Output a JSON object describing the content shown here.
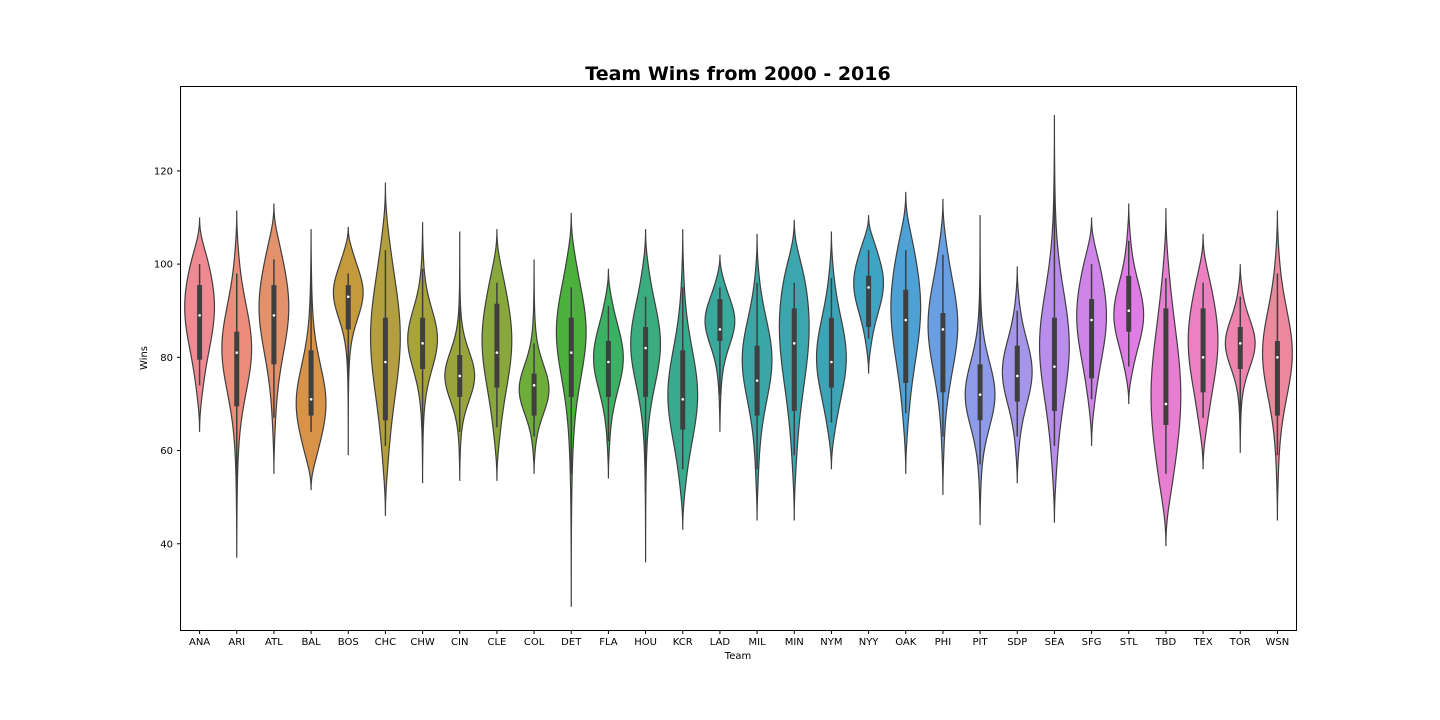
{
  "chart_data": {
    "type": "violin",
    "title": "Team Wins from 2000 - 2016",
    "xlabel": "Team",
    "ylabel": "Wins",
    "ylim": [
      21.5,
      138
    ],
    "yticks": [
      40,
      60,
      80,
      100,
      120
    ],
    "grid": false,
    "legend": "none",
    "categories": [
      "ANA",
      "ARI",
      "ATL",
      "BAL",
      "BOS",
      "CHC",
      "CHW",
      "CIN",
      "CLE",
      "COL",
      "DET",
      "FLA",
      "HOU",
      "KCR",
      "LAD",
      "MIL",
      "MIN",
      "NYM",
      "NYY",
      "OAK",
      "PHI",
      "PIT",
      "SDP",
      "SEA",
      "SFG",
      "STL",
      "TBD",
      "TEX",
      "TOR",
      "WSN"
    ],
    "colors": [
      "#ef8a93",
      "#ed8c7b",
      "#e3916a",
      "#d99348",
      "#c49a3d",
      "#b49f3e",
      "#a7a43c",
      "#99a53b",
      "#88a83c",
      "#6fad3b",
      "#4bb03c",
      "#3ab163",
      "#3bac7f",
      "#3aaa8f",
      "#39a99c",
      "#3aa7a6",
      "#3ba6ae",
      "#3ca4b6",
      "#3fa3c4",
      "#4ea1d4",
      "#6a9ee2",
      "#8e9be9",
      "#a596e9",
      "#b88deb",
      "#cf84ea",
      "#e07ce5",
      "#e87ed2",
      "#ec80c0",
      "#ee84ad",
      "#ee889c"
    ],
    "series": [
      {
        "team": "ANA",
        "min": 64,
        "max": 110,
        "q1": 79.5,
        "median": 89,
        "q3": 95.5,
        "whisker_low": 74,
        "whisker_high": 100,
        "mode": 91
      },
      {
        "team": "ARI",
        "min": 37,
        "max": 111.5,
        "q1": 69.5,
        "median": 81,
        "q3": 85.5,
        "whisker_low": 51,
        "whisker_high": 98,
        "mode": 82
      },
      {
        "team": "ATL",
        "min": 55,
        "max": 113,
        "q1": 78.5,
        "median": 89,
        "q3": 95.5,
        "whisker_low": 67,
        "whisker_high": 101,
        "mode": 91
      },
      {
        "team": "BAL",
        "min": 51.5,
        "max": 107.5,
        "q1": 67.5,
        "median": 71,
        "q3": 81.5,
        "whisker_low": 64,
        "whisker_high": 96,
        "mode": 70
      },
      {
        "team": "BOS",
        "min": 59,
        "max": 108,
        "q1": 86,
        "median": 93,
        "q3": 95.5,
        "whisker_low": 71,
        "whisker_high": 98,
        "mode": 94
      },
      {
        "team": "CHC",
        "min": 46,
        "max": 117.5,
        "q1": 66.5,
        "median": 79,
        "q3": 88.5,
        "whisker_low": 61,
        "whisker_high": 103,
        "mode": 85
      },
      {
        "team": "CHW",
        "min": 53,
        "max": 109,
        "q1": 77.5,
        "median": 83,
        "q3": 88.5,
        "whisker_low": 63,
        "whisker_high": 99,
        "mode": 84
      },
      {
        "team": "CIN",
        "min": 53.5,
        "max": 107,
        "q1": 71.5,
        "median": 76,
        "q3": 80.5,
        "whisker_low": 64,
        "whisker_high": 91,
        "mode": 76
      },
      {
        "team": "CLE",
        "min": 53.5,
        "max": 107.5,
        "q1": 73.5,
        "median": 81,
        "q3": 91.5,
        "whisker_low": 65,
        "whisker_high": 96,
        "mode": 84
      },
      {
        "team": "COL",
        "min": 55,
        "max": 101,
        "q1": 67.5,
        "median": 74,
        "q3": 76.5,
        "whisker_low": 63,
        "whisker_high": 83,
        "mode": 73
      },
      {
        "team": "DET",
        "min": 26.5,
        "max": 111,
        "q1": 71.5,
        "median": 81,
        "q3": 88.5,
        "whisker_low": 55,
        "whisker_high": 95,
        "mode": 86
      },
      {
        "team": "FLA",
        "min": 54,
        "max": 99,
        "q1": 71.5,
        "median": 79,
        "q3": 83.5,
        "whisker_low": 62,
        "whisker_high": 91,
        "mode": 80
      },
      {
        "team": "HOU",
        "min": 36,
        "max": 107.5,
        "q1": 71.5,
        "median": 82,
        "q3": 86.5,
        "whisker_low": 51,
        "whisker_high": 93,
        "mode": 83
      },
      {
        "team": "KCR",
        "min": 43,
        "max": 107.5,
        "q1": 64.5,
        "median": 71,
        "q3": 81.5,
        "whisker_low": 56,
        "whisker_high": 95,
        "mode": 72
      },
      {
        "team": "LAD",
        "min": 64,
        "max": 102,
        "q1": 83.5,
        "median": 86,
        "q3": 92.5,
        "whisker_low": 72,
        "whisker_high": 95,
        "mode": 88
      },
      {
        "team": "MIL",
        "min": 45,
        "max": 106.5,
        "q1": 67.5,
        "median": 75,
        "q3": 82.5,
        "whisker_low": 56,
        "whisker_high": 96,
        "mode": 80
      },
      {
        "team": "MIN",
        "min": 45,
        "max": 109.5,
        "q1": 68.5,
        "median": 83,
        "q3": 90.5,
        "whisker_low": 59,
        "whisker_high": 96,
        "mode": 87
      },
      {
        "team": "NYM",
        "min": 56,
        "max": 107,
        "q1": 73.5,
        "median": 79,
        "q3": 88.5,
        "whisker_low": 66,
        "whisker_high": 97,
        "mode": 80
      },
      {
        "team": "NYY",
        "min": 76.5,
        "max": 110.5,
        "q1": 86.5,
        "median": 95,
        "q3": 97.5,
        "whisker_low": 84,
        "whisker_high": 103,
        "mode": 96
      },
      {
        "team": "OAK",
        "min": 55,
        "max": 115.5,
        "q1": 74.5,
        "median": 88,
        "q3": 94.5,
        "whisker_low": 68,
        "whisker_high": 103,
        "mode": 91
      },
      {
        "team": "PHI",
        "min": 50.5,
        "max": 114,
        "q1": 72.5,
        "median": 86,
        "q3": 89.5,
        "whisker_low": 63,
        "whisker_high": 102,
        "mode": 87
      },
      {
        "team": "PIT",
        "min": 44,
        "max": 110.5,
        "q1": 66.5,
        "median": 72,
        "q3": 78.5,
        "whisker_low": 57,
        "whisker_high": 94,
        "mode": 72
      },
      {
        "team": "SDP",
        "min": 53,
        "max": 99.5,
        "q1": 70.5,
        "median": 76,
        "q3": 82.5,
        "whisker_low": 63,
        "whisker_high": 90,
        "mode": 77
      },
      {
        "team": "SEA",
        "min": 44.5,
        "max": 132,
        "q1": 68.5,
        "median": 78,
        "q3": 88.5,
        "whisker_low": 61,
        "whisker_high": 116,
        "mode": 83
      },
      {
        "team": "SFG",
        "min": 61,
        "max": 110,
        "q1": 75.5,
        "median": 88,
        "q3": 92.5,
        "whisker_low": 71,
        "whisker_high": 100,
        "mode": 89
      },
      {
        "team": "STL",
        "min": 70,
        "max": 113,
        "q1": 85.5,
        "median": 90,
        "q3": 97.5,
        "whisker_low": 78,
        "whisker_high": 105,
        "mode": 89
      },
      {
        "team": "TBD",
        "min": 39.5,
        "max": 112,
        "q1": 65.5,
        "median": 70,
        "q3": 90.5,
        "whisker_low": 55,
        "whisker_high": 97,
        "mode": 72
      },
      {
        "team": "TEX",
        "min": 56,
        "max": 106.5,
        "q1": 72.5,
        "median": 80,
        "q3": 90.5,
        "whisker_low": 67,
        "whisker_high": 96,
        "mode": 84
      },
      {
        "team": "TOR",
        "min": 59.5,
        "max": 100,
        "q1": 77.5,
        "median": 83,
        "q3": 86.5,
        "whisker_low": 67,
        "whisker_high": 93,
        "mode": 83
      },
      {
        "team": "WSN",
        "min": 45,
        "max": 111.5,
        "q1": 67.5,
        "median": 80,
        "q3": 83.5,
        "whisker_low": 59,
        "whisker_high": 98,
        "mode": 81
      }
    ]
  }
}
